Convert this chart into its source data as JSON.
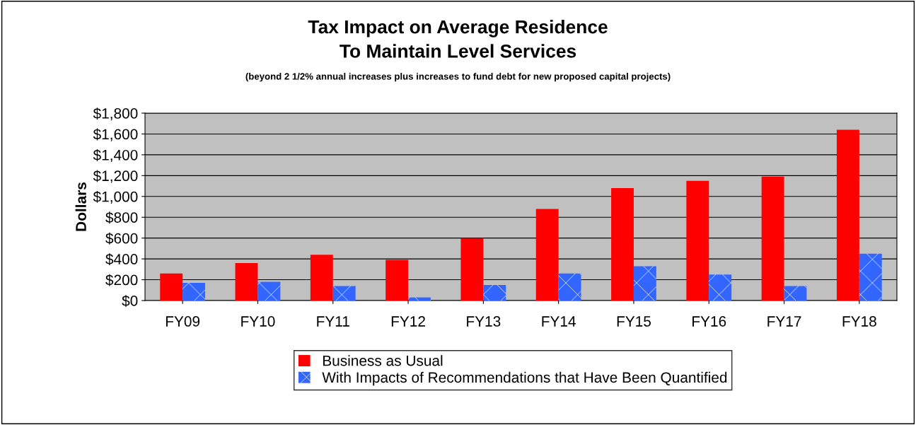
{
  "chart_data": {
    "type": "bar",
    "title": "Tax Impact on Average Residence\nTo Maintain Level Services",
    "subtitle": "(beyond 2 1/2% annual increases plus increases to fund debt for new proposed capital projects)",
    "ylabel": "Dollars",
    "categories": [
      "FY09",
      "FY10",
      "FY11",
      "FY12",
      "FY13",
      "FY14",
      "FY15",
      "FY16",
      "FY17",
      "FY18"
    ],
    "series": [
      {
        "name": "Business as Usual",
        "color": "#ff0000",
        "values": [
          260,
          360,
          440,
          390,
          600,
          880,
          1080,
          1150,
          1190,
          1640
        ]
      },
      {
        "name": "With Impacts of Recommendations that Have Been Quantified",
        "color": "#3366ff",
        "values": [
          170,
          180,
          140,
          30,
          150,
          260,
          330,
          250,
          140,
          450
        ]
      }
    ],
    "ylim": [
      0,
      1800
    ],
    "yticks": [
      {
        "value": 0,
        "label": "$0"
      },
      {
        "value": 200,
        "label": "$200"
      },
      {
        "value": 400,
        "label": "$400"
      },
      {
        "value": 600,
        "label": "$600"
      },
      {
        "value": 800,
        "label": "$800"
      },
      {
        "value": 1000,
        "label": "$1,000"
      },
      {
        "value": 1200,
        "label": "$1,200"
      },
      {
        "value": 1400,
        "label": "$1,400"
      },
      {
        "value": 1600,
        "label": "$1,600"
      },
      {
        "value": 1800,
        "label": "$1,800"
      }
    ],
    "grid": "y",
    "legend": "bottom"
  }
}
